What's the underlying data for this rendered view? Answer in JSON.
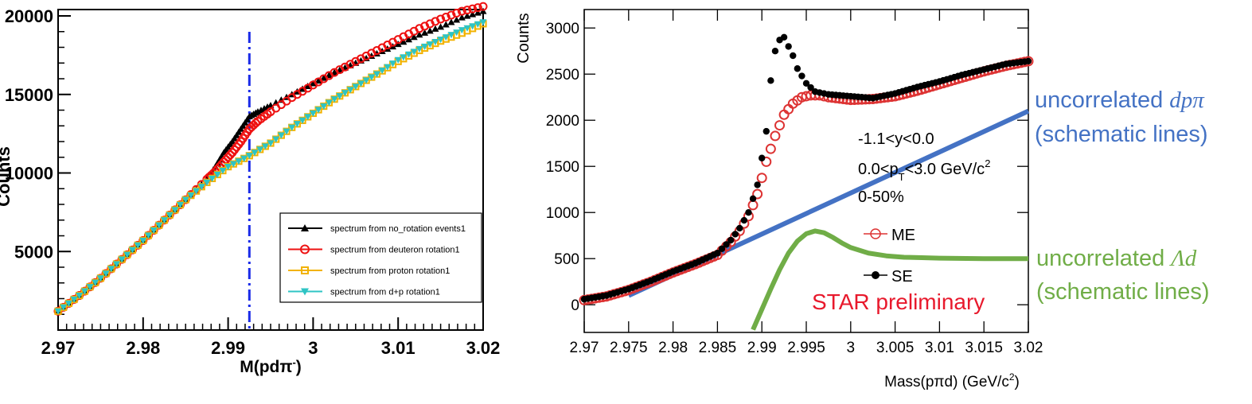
{
  "chart_data": [
    {
      "type": "scatter",
      "title": "",
      "xlabel_main": "M(pdπ",
      "xlabel_sup": "-",
      "xlabel_end": ")",
      "ylabel": "Counts",
      "xlim": [
        2.97,
        3.02
      ],
      "ylim": [
        0,
        20000
      ],
      "x_ticks": [
        "2.97",
        "2.98",
        "2.99",
        "3",
        "3.01",
        "3.02"
      ],
      "y_ticks": [
        {
          "value": 20000,
          "label": "20000"
        },
        {
          "value": 15000,
          "label": "15000"
        },
        {
          "value": 10000,
          "label": "10000"
        },
        {
          "value": 5000,
          "label": "5000"
        }
      ],
      "marker_line_x": 2.9925,
      "legend_position": "bottom-right",
      "series": [
        {
          "name": "spectrum from no_rotation events1",
          "color": "#000000",
          "marker": "triangle-up",
          "x": [
            2.97,
            2.9725,
            2.975,
            2.9775,
            2.98,
            2.9825,
            2.985,
            2.9875,
            2.9885,
            2.9895,
            2.9905,
            2.9915,
            2.9925,
            2.9935,
            2.995,
            2.9975,
            3.0,
            3.0025,
            3.005,
            3.0075,
            3.01,
            3.0125,
            3.015,
            3.0175,
            3.02
          ],
          "y": [
            1200,
            2200,
            3300,
            4500,
            5700,
            7000,
            8300,
            9600,
            10400,
            11300,
            12000,
            12800,
            13600,
            13900,
            14300,
            15000,
            15700,
            16400,
            17000,
            17600,
            18200,
            18800,
            19300,
            19900,
            20300
          ]
        },
        {
          "name": "spectrum from deuteron rotation1",
          "color": "#ee1111",
          "marker": "circle-open",
          "x": [
            2.97,
            2.9725,
            2.975,
            2.9775,
            2.98,
            2.9825,
            2.985,
            2.9875,
            2.9885,
            2.9895,
            2.9905,
            2.9915,
            2.9925,
            2.9935,
            2.995,
            2.9975,
            3.0,
            3.0025,
            3.005,
            3.0075,
            3.01,
            3.0125,
            3.015,
            3.0175,
            3.02
          ],
          "y": [
            1200,
            2200,
            3300,
            4500,
            5700,
            7000,
            8300,
            9600,
            10100,
            10700,
            11300,
            12000,
            12800,
            13300,
            13900,
            14800,
            15600,
            16400,
            17100,
            17800,
            18500,
            19200,
            19800,
            20300,
            20600
          ]
        },
        {
          "name": "spectrum from proton rotation1",
          "color": "#f2b200",
          "marker": "square-open",
          "x": [
            2.97,
            2.9725,
            2.975,
            2.9775,
            2.98,
            2.9825,
            2.985,
            2.9875,
            2.99,
            2.9925,
            2.995,
            2.9975,
            3.0,
            3.0025,
            3.005,
            3.0075,
            3.01,
            3.0125,
            3.015,
            3.0175,
            3.02
          ],
          "y": [
            1200,
            2200,
            3300,
            4500,
            5700,
            7000,
            8300,
            9400,
            10400,
            11100,
            11900,
            12900,
            13800,
            14700,
            15500,
            16300,
            17100,
            17800,
            18400,
            18900,
            19500
          ]
        },
        {
          "name": "spectrum from d+p rotation1",
          "color": "#2ec4c4",
          "marker": "triangle-down",
          "x": [
            2.97,
            2.9725,
            2.975,
            2.9775,
            2.98,
            2.9825,
            2.985,
            2.9875,
            2.99,
            2.9925,
            2.995,
            2.9975,
            3.0,
            3.0025,
            3.005,
            3.0075,
            3.01,
            3.0125,
            3.015,
            3.0175,
            3.02
          ],
          "y": [
            1200,
            2200,
            3300,
            4500,
            5700,
            7000,
            8300,
            9400,
            10400,
            11100,
            11900,
            12900,
            13800,
            14700,
            15500,
            16300,
            17200,
            17900,
            18500,
            19100,
            19600
          ]
        }
      ]
    },
    {
      "type": "scatter",
      "title": "",
      "xlabel": "Mass(pπd) (GeV/c",
      "xlabel_sup": "2",
      "xlabel_end": ")",
      "ylabel": "Counts",
      "xlim": [
        2.97,
        3.02
      ],
      "ylim": [
        -300,
        3200
      ],
      "x_ticks": [
        "2.97",
        "2.975",
        "2.98",
        "2.985",
        "2.99",
        "2.995",
        "3",
        "3.005",
        "3.01",
        "3.015",
        "3.02"
      ],
      "y_ticks": [
        "0",
        "500",
        "1000",
        "1500",
        "2000",
        "2500",
        "3000"
      ],
      "annotations": {
        "y_range": "-1.1<y<0.0",
        "pt_range_a": "0.0<p",
        "pt_sub": "T",
        "pt_range_b": "<3.0 GeV/c",
        "pt_sup": "2",
        "centrality": "0-50%",
        "star": "STAR preliminary"
      },
      "series": [
        {
          "name": "SE",
          "color": "#000000",
          "marker": "circle-filled",
          "x": [
            2.97,
            2.9725,
            2.975,
            2.9775,
            2.98,
            2.9825,
            2.985,
            2.9865,
            2.9875,
            2.9885,
            2.9895,
            2.9905,
            2.991,
            2.9915,
            2.992,
            2.9925,
            2.993,
            2.9935,
            2.994,
            2.995,
            2.996,
            2.9975,
            3.0,
            3.0025,
            3.005,
            3.0075,
            3.01,
            3.0125,
            3.015,
            3.0175,
            3.02
          ],
          "y": [
            60,
            100,
            170,
            260,
            360,
            450,
            560,
            700,
            830,
            1000,
            1300,
            1880,
            2430,
            2750,
            2870,
            2900,
            2800,
            2700,
            2560,
            2400,
            2310,
            2280,
            2260,
            2240,
            2290,
            2360,
            2420,
            2490,
            2550,
            2610,
            2640
          ]
        },
        {
          "name": "ME",
          "color": "#dd3333",
          "marker": "circle-open",
          "x": [
            2.97,
            2.9725,
            2.975,
            2.9775,
            2.98,
            2.9825,
            2.985,
            2.9865,
            2.9875,
            2.9885,
            2.9895,
            2.9905,
            2.9915,
            2.9925,
            2.9935,
            2.9945,
            2.9955,
            2.9965,
            2.9975,
            3.0,
            3.0025,
            3.005,
            3.0075,
            3.01,
            3.0125,
            3.015,
            3.0175,
            3.02
          ],
          "y": [
            50,
            90,
            160,
            250,
            350,
            440,
            540,
            680,
            800,
            960,
            1200,
            1550,
            1830,
            2060,
            2180,
            2250,
            2270,
            2270,
            2250,
            2220,
            2230,
            2260,
            2320,
            2390,
            2460,
            2530,
            2590,
            2640
          ]
        }
      ],
      "schematic_lines": [
        {
          "name": "uncorrelated dpπ",
          "label_text": "uncorrelated ",
          "label_math": "dpπ",
          "label_line2": "(schematic lines)",
          "color": "#4472c4",
          "x": [
            2.975,
            3.02
          ],
          "y": [
            100,
            2100
          ]
        },
        {
          "name": "uncorrelated Λd",
          "label_text": "uncorrelated ",
          "label_math": "Λd",
          "label_line2": "(schematic lines)",
          "color": "#70ad47",
          "x": [
            2.989,
            2.99,
            2.991,
            2.992,
            2.993,
            2.994,
            2.995,
            2.996,
            2.997,
            2.998,
            2.999,
            3.0,
            3.002,
            3.004,
            3.006,
            3.008,
            3.01,
            3.015,
            3.02
          ],
          "y": [
            -270,
            -50,
            170,
            380,
            560,
            690,
            770,
            800,
            780,
            730,
            670,
            620,
            560,
            530,
            515,
            510,
            505,
            500,
            500
          ]
        }
      ]
    }
  ]
}
